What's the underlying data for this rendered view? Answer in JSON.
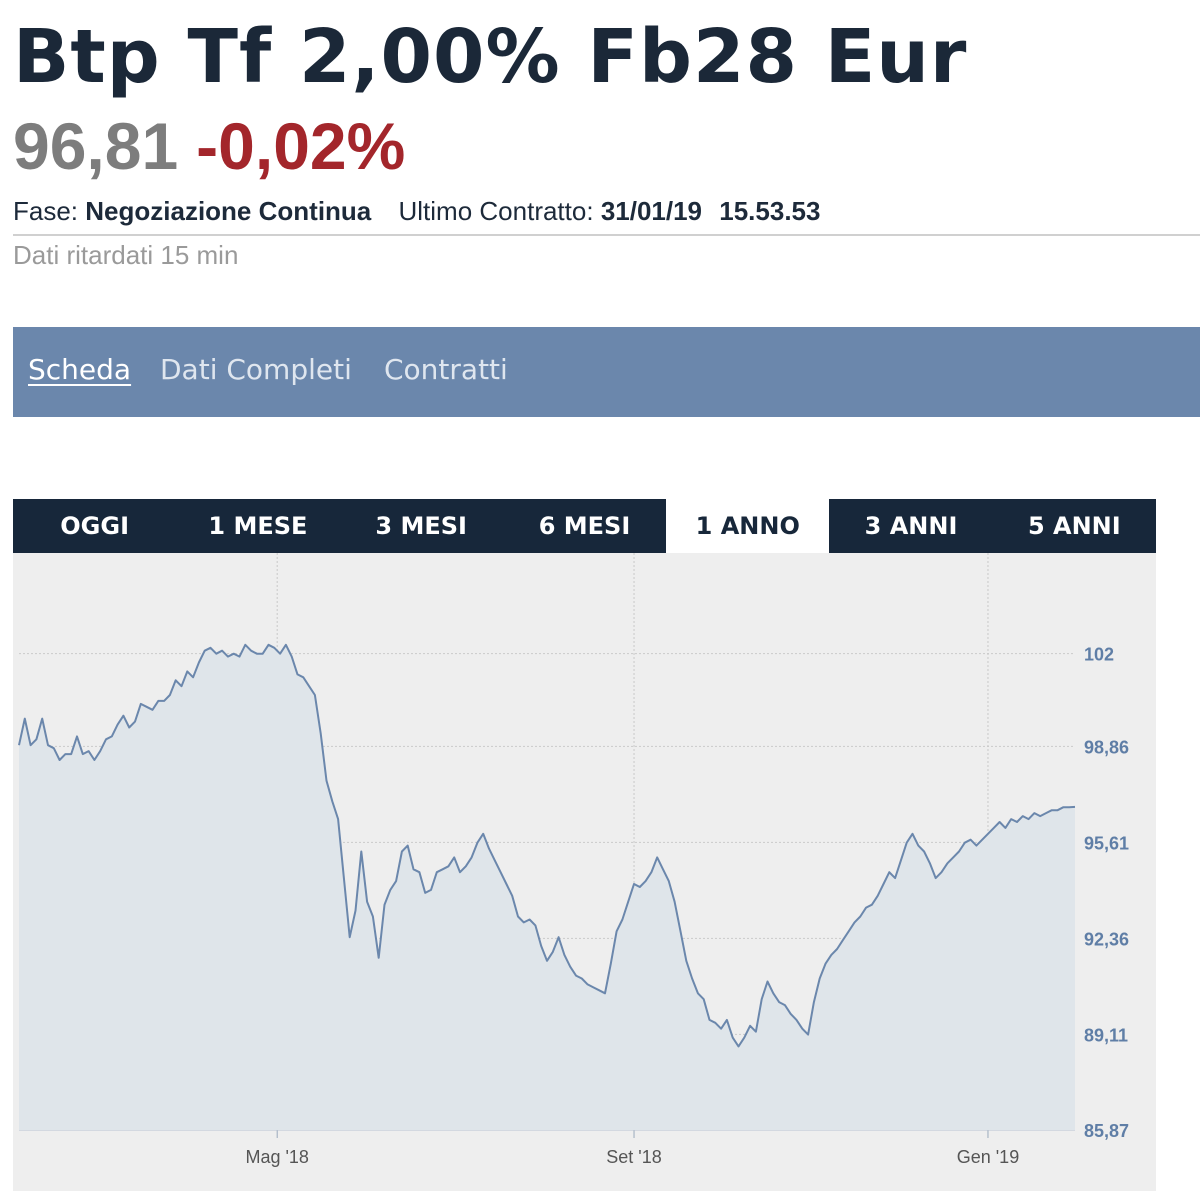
{
  "header": {
    "title": "Btp Tf 2,00% Fb28 Eur",
    "price": "96,81",
    "change": "-0,02%",
    "phase_label": "Fase:",
    "phase_value": "Negoziazione Continua",
    "last_contract_label": "Ultimo Contratto:",
    "last_contract_date": "31/01/19",
    "last_contract_time": "15.53.53",
    "delay_note": "Dati ritardati 15 min"
  },
  "tabs": [
    {
      "label": "Scheda",
      "active": true
    },
    {
      "label": "Dati Completi",
      "active": false
    },
    {
      "label": "Contratti",
      "active": false
    }
  ],
  "periods": [
    {
      "label": "OGGI",
      "active": false
    },
    {
      "label": "1 MESE",
      "active": false
    },
    {
      "label": "3 MESI",
      "active": false
    },
    {
      "label": "6 MESI",
      "active": false
    },
    {
      "label": "1 ANNO",
      "active": true
    },
    {
      "label": "3 ANNI",
      "active": false
    },
    {
      "label": "5 ANNI",
      "active": false
    }
  ],
  "colors": {
    "line": "#6b87ac",
    "area_fill": "#dfe5ea",
    "plot_bg": "#eeeeee",
    "axis_label": "#5f7ea6",
    "negative": "#a3262b"
  },
  "chart_data": {
    "type": "area",
    "title": "",
    "xlabel": "",
    "ylabel": "",
    "ylim": [
      85.87,
      104.8
    ],
    "yticks": [
      {
        "value": 102,
        "label": "102"
      },
      {
        "value": 98.86,
        "label": "98,86"
      },
      {
        "value": 95.61,
        "label": "95,61"
      },
      {
        "value": 92.36,
        "label": "92,36"
      },
      {
        "value": 89.11,
        "label": "89,11"
      },
      {
        "value": 85.87,
        "label": "85,87"
      }
    ],
    "xlim": [
      "2018-02-01",
      "2019-01-31"
    ],
    "xticks": [
      {
        "date": "2018-05-01",
        "label": "Mag '18"
      },
      {
        "date": "2018-09-01",
        "label": "Set '18"
      },
      {
        "date": "2019-01-01",
        "label": "Gen '19"
      }
    ],
    "grid": true,
    "legend": "none",
    "series": [
      {
        "points": [
          [
            "2018-02-01",
            98.9
          ],
          [
            "2018-02-03",
            99.8
          ],
          [
            "2018-02-05",
            98.9
          ],
          [
            "2018-02-07",
            99.1
          ],
          [
            "2018-02-09",
            99.8
          ],
          [
            "2018-02-11",
            98.9
          ],
          [
            "2018-02-13",
            98.8
          ],
          [
            "2018-02-15",
            98.4
          ],
          [
            "2018-02-17",
            98.6
          ],
          [
            "2018-02-19",
            98.6
          ],
          [
            "2018-02-21",
            99.2
          ],
          [
            "2018-02-23",
            98.6
          ],
          [
            "2018-02-25",
            98.7
          ],
          [
            "2018-02-27",
            98.4
          ],
          [
            "2018-03-01",
            98.7
          ],
          [
            "2018-03-03",
            99.1
          ],
          [
            "2018-03-05",
            99.2
          ],
          [
            "2018-03-07",
            99.6
          ],
          [
            "2018-03-09",
            99.9
          ],
          [
            "2018-03-11",
            99.5
          ],
          [
            "2018-03-13",
            99.7
          ],
          [
            "2018-03-15",
            100.3
          ],
          [
            "2018-03-17",
            100.2
          ],
          [
            "2018-03-19",
            100.1
          ],
          [
            "2018-03-21",
            100.4
          ],
          [
            "2018-03-23",
            100.4
          ],
          [
            "2018-03-25",
            100.6
          ],
          [
            "2018-03-27",
            101.1
          ],
          [
            "2018-03-29",
            100.9
          ],
          [
            "2018-03-31",
            101.4
          ],
          [
            "2018-04-02",
            101.2
          ],
          [
            "2018-04-04",
            101.7
          ],
          [
            "2018-04-06",
            102.1
          ],
          [
            "2018-04-08",
            102.2
          ],
          [
            "2018-04-10",
            102.0
          ],
          [
            "2018-04-12",
            102.1
          ],
          [
            "2018-04-14",
            101.9
          ],
          [
            "2018-04-16",
            102.0
          ],
          [
            "2018-04-18",
            101.9
          ],
          [
            "2018-04-20",
            102.3
          ],
          [
            "2018-04-22",
            102.1
          ],
          [
            "2018-04-24",
            102.0
          ],
          [
            "2018-04-26",
            102.0
          ],
          [
            "2018-04-28",
            102.3
          ],
          [
            "2018-04-30",
            102.2
          ],
          [
            "2018-05-02",
            102.0
          ],
          [
            "2018-05-04",
            102.3
          ],
          [
            "2018-05-06",
            101.9
          ],
          [
            "2018-05-08",
            101.3
          ],
          [
            "2018-05-10",
            101.2
          ],
          [
            "2018-05-12",
            100.9
          ],
          [
            "2018-05-14",
            100.6
          ],
          [
            "2018-05-16",
            99.3
          ],
          [
            "2018-05-18",
            97.7
          ],
          [
            "2018-05-20",
            97.0
          ],
          [
            "2018-05-22",
            96.4
          ],
          [
            "2018-05-24",
            94.4
          ],
          [
            "2018-05-26",
            92.4
          ],
          [
            "2018-05-28",
            93.3
          ],
          [
            "2018-05-30",
            95.3
          ],
          [
            "2018-06-01",
            93.6
          ],
          [
            "2018-06-03",
            93.1
          ],
          [
            "2018-06-05",
            91.7
          ],
          [
            "2018-06-07",
            93.5
          ],
          [
            "2018-06-09",
            94.0
          ],
          [
            "2018-06-11",
            94.3
          ],
          [
            "2018-06-13",
            95.3
          ],
          [
            "2018-06-15",
            95.5
          ],
          [
            "2018-06-17",
            94.7
          ],
          [
            "2018-06-19",
            94.6
          ],
          [
            "2018-06-21",
            93.9
          ],
          [
            "2018-06-23",
            94.0
          ],
          [
            "2018-06-25",
            94.6
          ],
          [
            "2018-06-27",
            94.7
          ],
          [
            "2018-06-29",
            94.8
          ],
          [
            "2018-07-01",
            95.1
          ],
          [
            "2018-07-03",
            94.6
          ],
          [
            "2018-07-05",
            94.8
          ],
          [
            "2018-07-07",
            95.1
          ],
          [
            "2018-07-09",
            95.6
          ],
          [
            "2018-07-11",
            95.9
          ],
          [
            "2018-07-13",
            95.4
          ],
          [
            "2018-07-15",
            95.0
          ],
          [
            "2018-07-17",
            94.6
          ],
          [
            "2018-07-19",
            94.2
          ],
          [
            "2018-07-21",
            93.8
          ],
          [
            "2018-07-23",
            93.1
          ],
          [
            "2018-07-25",
            92.9
          ],
          [
            "2018-07-27",
            93.0
          ],
          [
            "2018-07-29",
            92.8
          ],
          [
            "2018-07-31",
            92.1
          ],
          [
            "2018-08-02",
            91.6
          ],
          [
            "2018-08-04",
            91.9
          ],
          [
            "2018-08-06",
            92.4
          ],
          [
            "2018-08-08",
            91.8
          ],
          [
            "2018-08-10",
            91.4
          ],
          [
            "2018-08-12",
            91.1
          ],
          [
            "2018-08-14",
            91.0
          ],
          [
            "2018-08-16",
            90.8
          ],
          [
            "2018-08-18",
            90.7
          ],
          [
            "2018-08-20",
            90.6
          ],
          [
            "2018-08-22",
            90.5
          ],
          [
            "2018-08-24",
            91.5
          ],
          [
            "2018-08-26",
            92.6
          ],
          [
            "2018-08-28",
            93.0
          ],
          [
            "2018-08-30",
            93.6
          ],
          [
            "2018-09-01",
            94.2
          ],
          [
            "2018-09-03",
            94.1
          ],
          [
            "2018-09-05",
            94.3
          ],
          [
            "2018-09-07",
            94.6
          ],
          [
            "2018-09-09",
            95.1
          ],
          [
            "2018-09-11",
            94.7
          ],
          [
            "2018-09-13",
            94.3
          ],
          [
            "2018-09-15",
            93.6
          ],
          [
            "2018-09-17",
            92.6
          ],
          [
            "2018-09-19",
            91.6
          ],
          [
            "2018-09-21",
            91.0
          ],
          [
            "2018-09-23",
            90.5
          ],
          [
            "2018-09-25",
            90.3
          ],
          [
            "2018-09-27",
            89.6
          ],
          [
            "2018-09-29",
            89.5
          ],
          [
            "2018-10-01",
            89.3
          ],
          [
            "2018-10-03",
            89.6
          ],
          [
            "2018-10-05",
            89.0
          ],
          [
            "2018-10-07",
            88.7
          ],
          [
            "2018-10-09",
            89.0
          ],
          [
            "2018-10-11",
            89.4
          ],
          [
            "2018-10-13",
            89.2
          ],
          [
            "2018-10-15",
            90.3
          ],
          [
            "2018-10-17",
            90.9
          ],
          [
            "2018-10-19",
            90.5
          ],
          [
            "2018-10-21",
            90.2
          ],
          [
            "2018-10-23",
            90.1
          ],
          [
            "2018-10-25",
            89.8
          ],
          [
            "2018-10-27",
            89.6
          ],
          [
            "2018-10-29",
            89.3
          ],
          [
            "2018-10-31",
            89.1
          ],
          [
            "2018-11-02",
            90.2
          ],
          [
            "2018-11-04",
            91.0
          ],
          [
            "2018-11-06",
            91.5
          ],
          [
            "2018-11-08",
            91.8
          ],
          [
            "2018-11-10",
            92.0
          ],
          [
            "2018-11-12",
            92.3
          ],
          [
            "2018-11-14",
            92.6
          ],
          [
            "2018-11-16",
            92.9
          ],
          [
            "2018-11-18",
            93.1
          ],
          [
            "2018-11-20",
            93.4
          ],
          [
            "2018-11-22",
            93.5
          ],
          [
            "2018-11-24",
            93.8
          ],
          [
            "2018-11-26",
            94.2
          ],
          [
            "2018-11-28",
            94.6
          ],
          [
            "2018-11-30",
            94.4
          ],
          [
            "2018-12-02",
            95.0
          ],
          [
            "2018-12-04",
            95.6
          ],
          [
            "2018-12-06",
            95.9
          ],
          [
            "2018-12-08",
            95.5
          ],
          [
            "2018-12-10",
            95.3
          ],
          [
            "2018-12-12",
            94.9
          ],
          [
            "2018-12-14",
            94.4
          ],
          [
            "2018-12-16",
            94.6
          ],
          [
            "2018-12-18",
            94.9
          ],
          [
            "2018-12-20",
            95.1
          ],
          [
            "2018-12-22",
            95.3
          ],
          [
            "2018-12-24",
            95.6
          ],
          [
            "2018-12-26",
            95.7
          ],
          [
            "2018-12-28",
            95.5
          ],
          [
            "2018-12-30",
            95.7
          ],
          [
            "2019-01-01",
            95.9
          ],
          [
            "2019-01-03",
            96.1
          ],
          [
            "2019-01-05",
            96.3
          ],
          [
            "2019-01-07",
            96.1
          ],
          [
            "2019-01-09",
            96.4
          ],
          [
            "2019-01-11",
            96.3
          ],
          [
            "2019-01-13",
            96.5
          ],
          [
            "2019-01-15",
            96.4
          ],
          [
            "2019-01-17",
            96.6
          ],
          [
            "2019-01-19",
            96.5
          ],
          [
            "2019-01-21",
            96.6
          ],
          [
            "2019-01-23",
            96.7
          ],
          [
            "2019-01-25",
            96.7
          ],
          [
            "2019-01-27",
            96.8
          ],
          [
            "2019-01-29",
            96.8
          ],
          [
            "2019-01-31",
            96.81
          ]
        ]
      }
    ]
  }
}
